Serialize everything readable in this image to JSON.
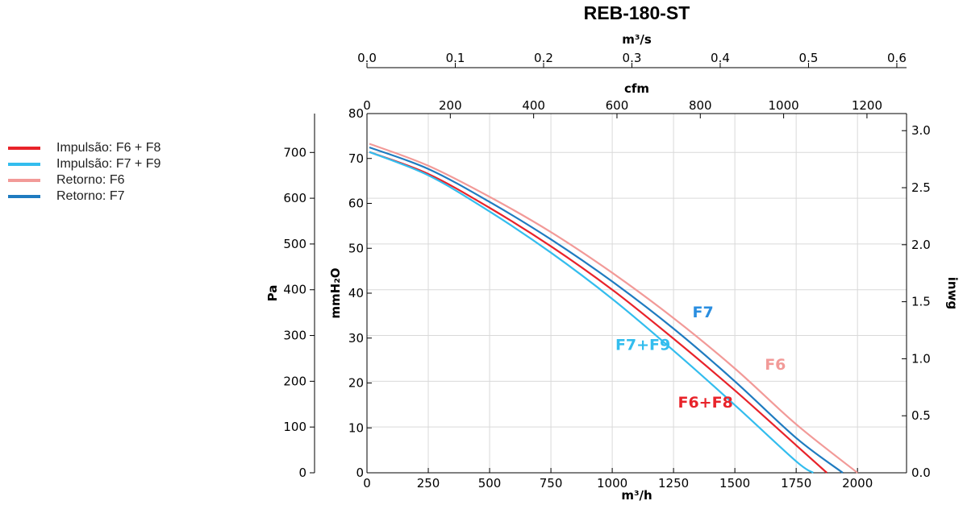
{
  "chart_data": {
    "type": "line",
    "title": "REB-180-ST",
    "legend_position": "left",
    "grid": true,
    "x_axis": {
      "label": "m³/h",
      "range": [
        0,
        2200
      ],
      "ticks": [
        0,
        250,
        500,
        750,
        1000,
        1250,
        1500,
        1750,
        2000
      ]
    },
    "x_top_axis_1": {
      "label": "m³/s",
      "range": [
        0,
        0.611
      ],
      "ticks": [
        0.0,
        0.1,
        0.2,
        0.3,
        0.4,
        0.5,
        0.6
      ],
      "tick_labels": [
        "0.0",
        "0.1",
        "0.2",
        "0.3",
        "0.4",
        "0.5",
        "0.6"
      ]
    },
    "x_top_axis_2": {
      "label": "cfm",
      "range": [
        0,
        1295
      ],
      "ticks": [
        0,
        200,
        400,
        600,
        800,
        1000,
        1200
      ]
    },
    "y_axis_pa": {
      "label": "Pa",
      "range": [
        0,
        785
      ],
      "ticks": [
        0,
        100,
        200,
        300,
        400,
        500,
        600,
        700
      ]
    },
    "y_axis_mmh2o": {
      "label": "mmH₂O",
      "range": [
        0,
        80
      ],
      "ticks": [
        0,
        10,
        20,
        30,
        40,
        50,
        60,
        70,
        80
      ]
    },
    "y_axis_inwg": {
      "label": "inwg",
      "range": [
        0,
        3.15
      ],
      "ticks": [
        0.0,
        0.5,
        1.0,
        1.5,
        2.0,
        2.5,
        3.0
      ],
      "tick_labels": [
        "0.0",
        "0.5",
        "1.0",
        "1.5",
        "2.0",
        "2.5",
        "3.0"
      ]
    },
    "series": [
      {
        "name": "Impulsão: F6 + F8",
        "short_label": "F6+F8",
        "color": "#e8232a",
        "x": [
          10,
          250,
          500,
          750,
          1000,
          1250,
          1500,
          1750,
          1875
        ],
        "y": [
          701,
          653,
          579,
          495,
          400,
          293,
          180,
          60,
          0
        ]
      },
      {
        "name": "Impulsão: F7 + F9",
        "short_label": "F7+F9",
        "color": "#33bdee",
        "x": [
          10,
          250,
          500,
          750,
          1000,
          1250,
          1500,
          1750,
          1820
        ],
        "y": [
          701,
          650,
          571,
          481,
          380,
          267,
          148,
          25,
          0
        ]
      },
      {
        "name": "Retorno: F6",
        "short_label": "F6",
        "color": "#f29a98",
        "x": [
          10,
          250,
          500,
          750,
          1000,
          1250,
          1500,
          1750,
          2000
        ],
        "y": [
          719,
          671,
          603,
          526,
          437,
          338,
          228,
          106,
          0
        ]
      },
      {
        "name": "Retorno: F7",
        "short_label": "F7",
        "color": "#1f7bc0",
        "x": [
          10,
          250,
          500,
          750,
          1000,
          1250,
          1500,
          1750,
          1940
        ],
        "y": [
          711,
          664,
          592,
          510,
          418,
          315,
          200,
          76,
          0
        ]
      }
    ],
    "annotations": [
      {
        "text": "F7",
        "x": 1370,
        "y": 340,
        "color": "#2a8ee0"
      },
      {
        "text": "F7+F9",
        "x": 1125,
        "y": 268,
        "color": "#33bdee"
      },
      {
        "text": "F6",
        "x": 1665,
        "y": 225,
        "color": "#f29a98"
      },
      {
        "text": "F6+F8",
        "x": 1380,
        "y": 143,
        "color": "#e8232a"
      }
    ]
  }
}
